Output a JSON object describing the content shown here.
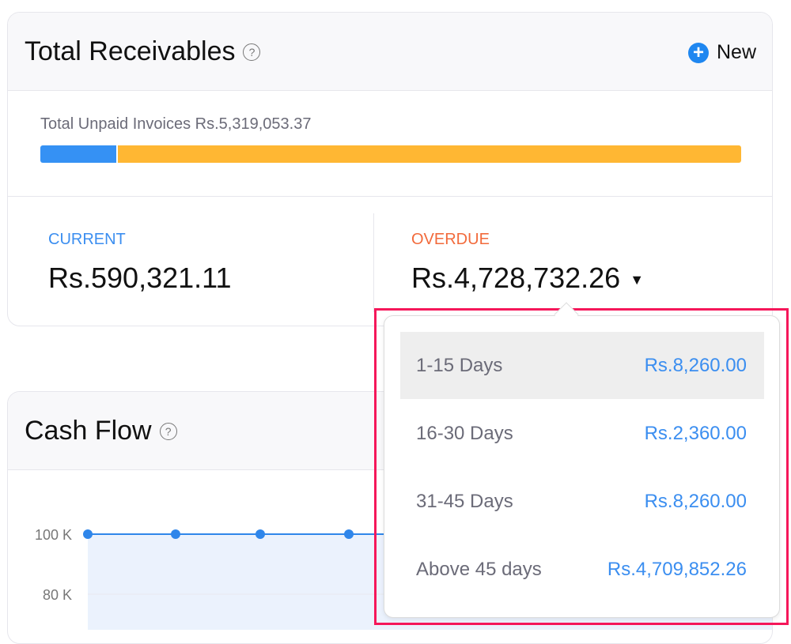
{
  "receivables": {
    "title": "Total Receivables",
    "help_icon": "question-circle-icon",
    "new_label": "New",
    "new_icon": "plus-circle-icon",
    "unpaid_text": "Total Unpaid Invoices Rs.5,319,053.37",
    "progress": {
      "current_fraction": 0.111,
      "overdue_fraction": 0.889
    },
    "current_label": "CURRENT",
    "current_amount": "Rs.590,321.11",
    "overdue_label": "OVERDUE",
    "overdue_amount": "Rs.4,728,732.26",
    "colors": {
      "current": "#3591f4",
      "overdue_bar": "#ffb733",
      "overdue_label": "#f26a3b",
      "current_label": "#3b8ef0"
    }
  },
  "overdue_dropdown": {
    "items": [
      {
        "label": "1-15 Days",
        "value": "Rs.8,260.00"
      },
      {
        "label": "16-30 Days",
        "value": "Rs.2,360.00"
      },
      {
        "label": "31-45 Days",
        "value": "Rs.8,260.00"
      },
      {
        "label": "Above 45 days",
        "value": "Rs.4,709,852.26"
      }
    ]
  },
  "cashflow": {
    "title": "Cash Flow",
    "help_icon": "question-circle-icon",
    "y_ticks": [
      "100 K",
      "80 K"
    ]
  },
  "chart_data": {
    "type": "area",
    "y_tick_labels": [
      "100 K",
      "80 K"
    ],
    "values": [
      100000,
      100000,
      100000,
      100000,
      100000
    ],
    "grid": true,
    "color": "#2f86ea"
  }
}
